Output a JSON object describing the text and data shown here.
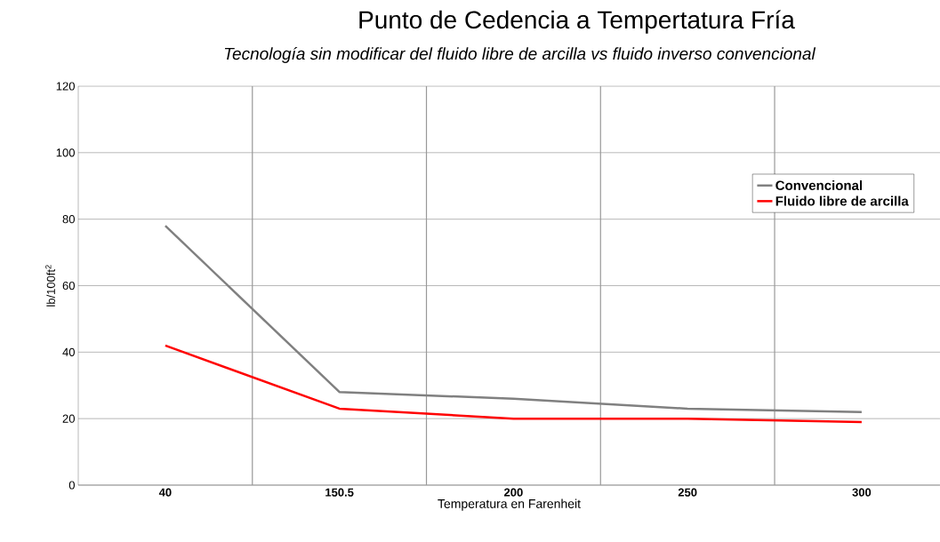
{
  "chart_data": {
    "type": "line",
    "title": "Punto de Cedencia a Tempertatura Fría",
    "subtitle": "Tecnología sin modificar del fluido libre de arcilla vs fluido inverso convencional",
    "xlabel": "Temperatura en Farenheit",
    "ylabel": "lb/100ft$^{2}$",
    "categories": [
      "40",
      "150.5",
      "200",
      "250",
      "300"
    ],
    "series": [
      {
        "name": "Convencional",
        "color": "#808080",
        "values": [
          78,
          28,
          26,
          23,
          22
        ]
      },
      {
        "name": "Fluido libre de arcilla",
        "color": "#ff0000",
        "values": [
          42,
          23,
          20,
          20,
          19
        ]
      }
    ],
    "ylim": [
      0,
      120
    ],
    "yticks": [
      0,
      20,
      40,
      60,
      80,
      100,
      120
    ],
    "grid": true,
    "legend": "right",
    "marker": "none",
    "line_style": "solid"
  }
}
